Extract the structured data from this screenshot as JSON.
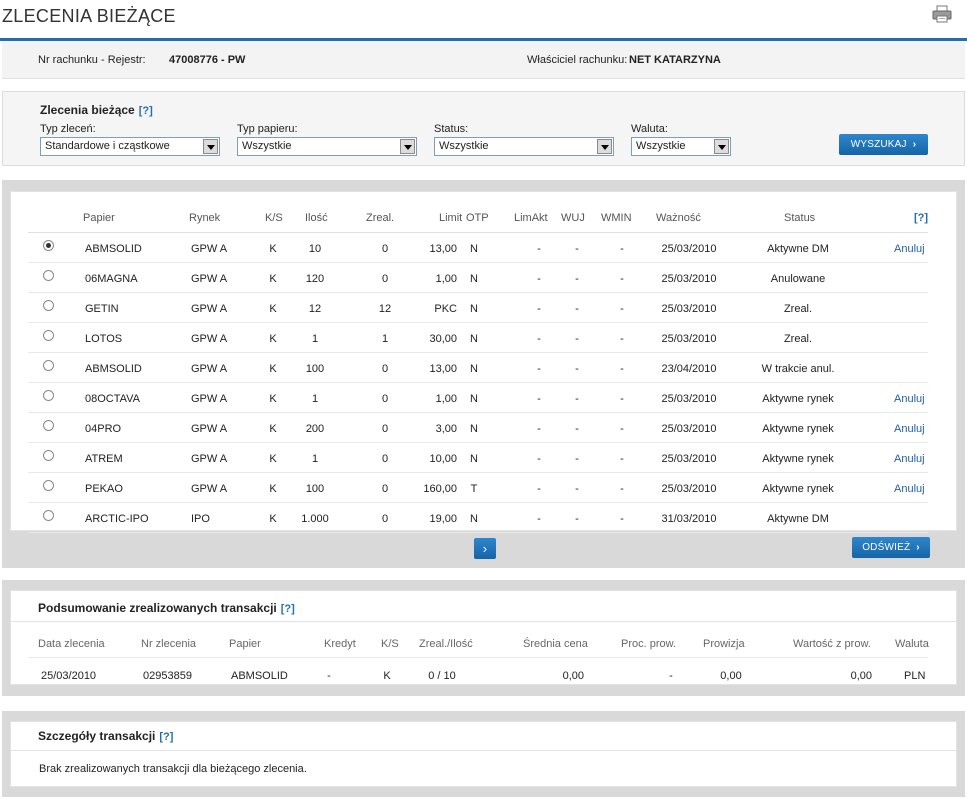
{
  "header": {
    "title": "ZLECENIA BIEŻĄCE"
  },
  "account": {
    "label": "Nr rachunku - Rejestr:",
    "number": "47008776 - PW",
    "owner_label": "Właściciel rachunku:",
    "owner": "NET KATARZYNA"
  },
  "filters": {
    "title": "Zlecenia bieżące",
    "help": "[?]",
    "order_type": {
      "label": "Typ zleceń:",
      "value": "Standardowe i cząstkowe"
    },
    "paper_type": {
      "label": "Typ papieru:",
      "value": "Wszystkie"
    },
    "status": {
      "label": "Status:",
      "value": "Wszystkie"
    },
    "currency": {
      "label": "Waluta:",
      "value": "Wszystkie"
    },
    "search_button": "WYSZUKAJ"
  },
  "orders": {
    "columns": [
      "Papier",
      "Rynek",
      "K/S",
      "Ilość",
      "Zreal.",
      "Limit",
      "OTP",
      "LimAkt",
      "WUJ",
      "WMIN",
      "Ważność",
      "Status",
      "[?]"
    ],
    "rows": [
      {
        "papier": "ABMSOLID",
        "rynek": "GPW A",
        "ks": "K",
        "ilosc": "10",
        "zreal": "0",
        "limit": "13,00",
        "otp": "N",
        "limakt": "-",
        "wuj": "-",
        "wmin": "-",
        "waznosc": "25/03/2010",
        "status": "Aktywne DM",
        "action": "Anuluj"
      },
      {
        "papier": "06MAGNA",
        "rynek": "GPW A",
        "ks": "K",
        "ilosc": "120",
        "zreal": "0",
        "limit": "1,00",
        "otp": "N",
        "limakt": "-",
        "wuj": "-",
        "wmin": "-",
        "waznosc": "25/03/2010",
        "status": "Anulowane",
        "action": ""
      },
      {
        "papier": "GETIN",
        "rynek": "GPW A",
        "ks": "K",
        "ilosc": "12",
        "zreal": "12",
        "limit": "PKC",
        "otp": "N",
        "limakt": "-",
        "wuj": "-",
        "wmin": "-",
        "waznosc": "25/03/2010",
        "status": "Zreal.",
        "action": ""
      },
      {
        "papier": "LOTOS",
        "rynek": "GPW A",
        "ks": "K",
        "ilosc": "1",
        "zreal": "1",
        "limit": "30,00",
        "otp": "N",
        "limakt": "-",
        "wuj": "-",
        "wmin": "-",
        "waznosc": "25/03/2010",
        "status": "Zreal.",
        "action": ""
      },
      {
        "papier": "ABMSOLID",
        "rynek": "GPW A",
        "ks": "K",
        "ilosc": "100",
        "zreal": "0",
        "limit": "13,00",
        "otp": "N",
        "limakt": "-",
        "wuj": "-",
        "wmin": "-",
        "waznosc": "23/04/2010",
        "status": "W trakcie anul.",
        "action": ""
      },
      {
        "papier": "08OCTAVA",
        "rynek": "GPW A",
        "ks": "K",
        "ilosc": "1",
        "zreal": "0",
        "limit": "1,00",
        "otp": "N",
        "limakt": "-",
        "wuj": "-",
        "wmin": "-",
        "waznosc": "25/03/2010",
        "status": "Aktywne rynek",
        "action": "Anuluj"
      },
      {
        "papier": "04PRO",
        "rynek": "GPW A",
        "ks": "K",
        "ilosc": "200",
        "zreal": "0",
        "limit": "3,00",
        "otp": "N",
        "limakt": "-",
        "wuj": "-",
        "wmin": "-",
        "waznosc": "25/03/2010",
        "status": "Aktywne rynek",
        "action": "Anuluj"
      },
      {
        "papier": "ATREM",
        "rynek": "GPW A",
        "ks": "K",
        "ilosc": "1",
        "zreal": "0",
        "limit": "10,00",
        "otp": "N",
        "limakt": "-",
        "wuj": "-",
        "wmin": "-",
        "waznosc": "25/03/2010",
        "status": "Aktywne rynek",
        "action": "Anuluj"
      },
      {
        "papier": "PEKAO",
        "rynek": "GPW A",
        "ks": "K",
        "ilosc": "100",
        "zreal": "0",
        "limit": "160,00",
        "otp": "T",
        "limakt": "-",
        "wuj": "-",
        "wmin": "-",
        "waznosc": "25/03/2010",
        "status": "Aktywne rynek",
        "action": "Anuluj"
      },
      {
        "papier": "ARCTIC-IPO",
        "rynek": "IPO",
        "ks": "K",
        "ilosc": "1.000",
        "zreal": "0",
        "limit": "19,00",
        "otp": "N",
        "limakt": "-",
        "wuj": "-",
        "wmin": "-",
        "waznosc": "31/03/2010",
        "status": "Aktywne DM",
        "action": ""
      }
    ],
    "selected_index": 0,
    "next_button": "›",
    "refresh_button": "ODŚWIEŻ"
  },
  "summary": {
    "title": "Podsumowanie zrealizowanych transakcji",
    "help": "[?]",
    "columns": [
      "Data zlecenia",
      "Nr zlecenia",
      "Papier",
      "Kredyt",
      "K/S",
      "Zreal./Ilość",
      "Średnia cena",
      "Proc. prow.",
      "Prowizja",
      "Wartość z prow.",
      "Waluta"
    ],
    "row": [
      "25/03/2010",
      "02953859",
      "ABMSOLID",
      "-",
      "K",
      "0 / 10",
      "0,00",
      "-",
      "0,00",
      "0,00",
      "PLN"
    ]
  },
  "details": {
    "title": "Szczegóły transakcji",
    "help": "[?]",
    "message": "Brak zrealizowanych transakcji dla bieżącego zlecenia."
  },
  "colors": {
    "accent": "#1f6fb2",
    "panel": "#d9d9d9"
  }
}
